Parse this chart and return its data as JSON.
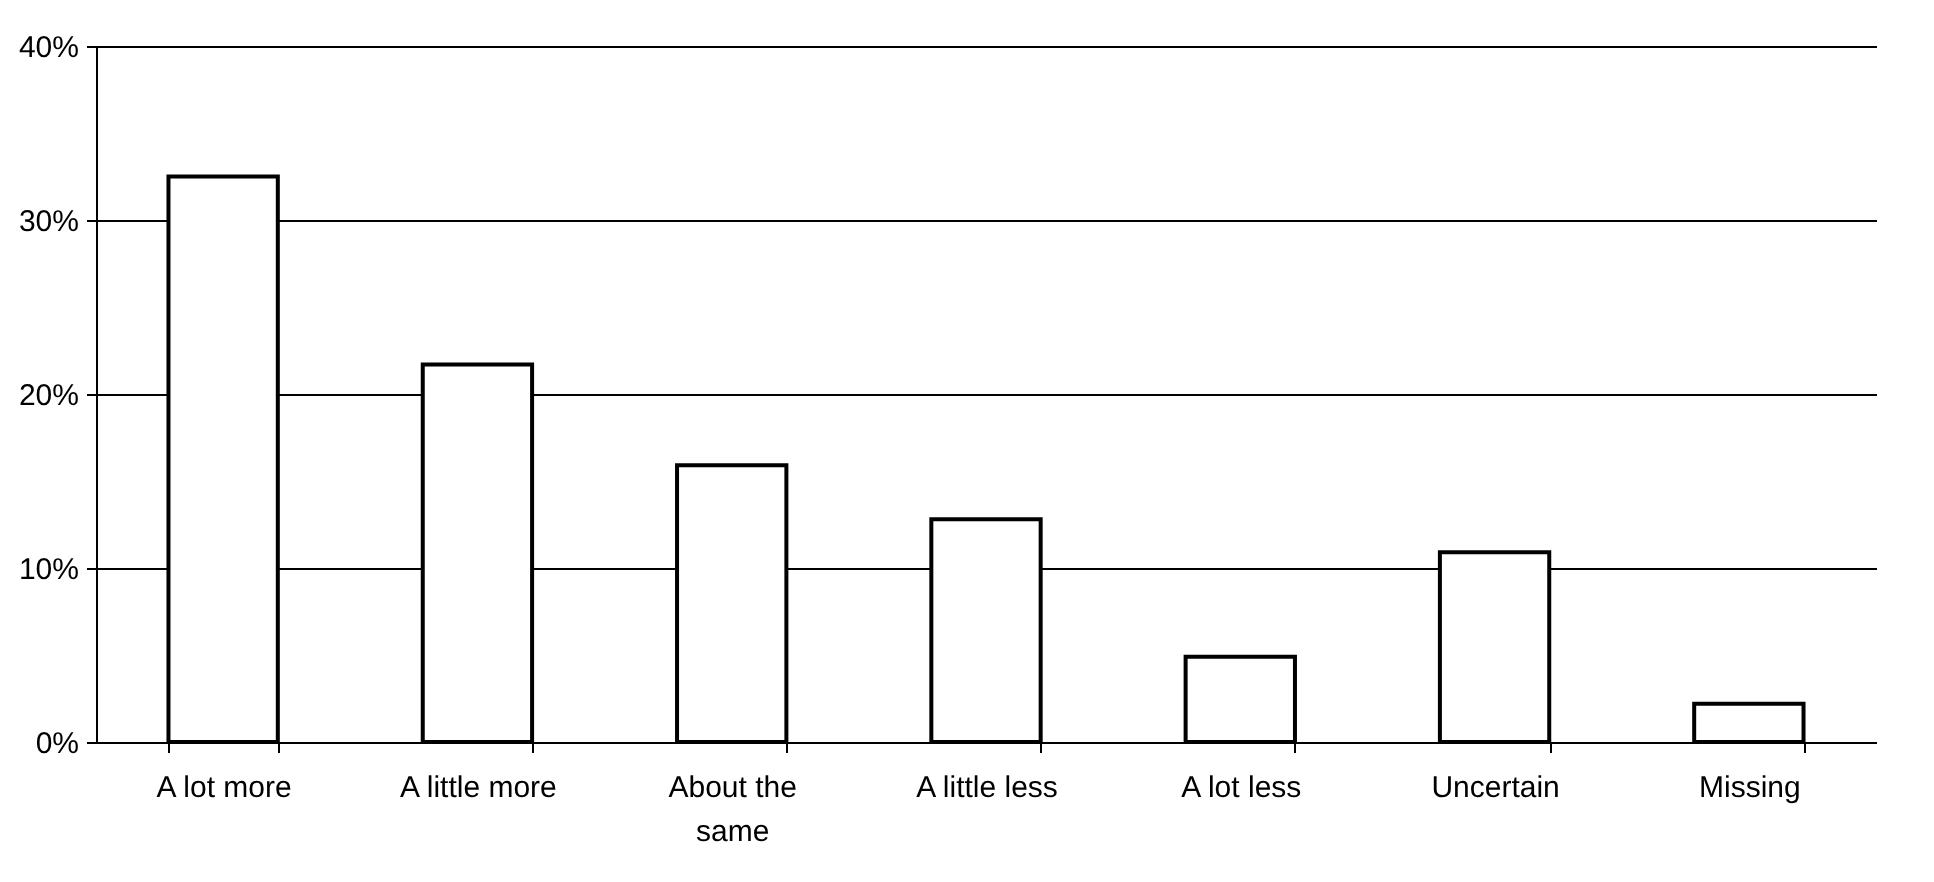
{
  "chart_data": {
    "type": "bar",
    "categories": [
      "A lot more",
      "A little more",
      "About the same",
      "A little less",
      "A lot less",
      "Uncertain",
      "Missing"
    ],
    "values": [
      32.5,
      21.7,
      15.9,
      12.8,
      4.9,
      10.9,
      2.2
    ],
    "color": "#ffffff",
    "ylim": [
      0,
      40
    ],
    "yticks": [
      {
        "value": 0,
        "label": "0%"
      },
      {
        "value": 10,
        "label": "10%"
      },
      {
        "value": 20,
        "label": "20%"
      },
      {
        "value": 30,
        "label": "30%"
      },
      {
        "value": 40,
        "label": "40%"
      }
    ],
    "grid": "y"
  }
}
